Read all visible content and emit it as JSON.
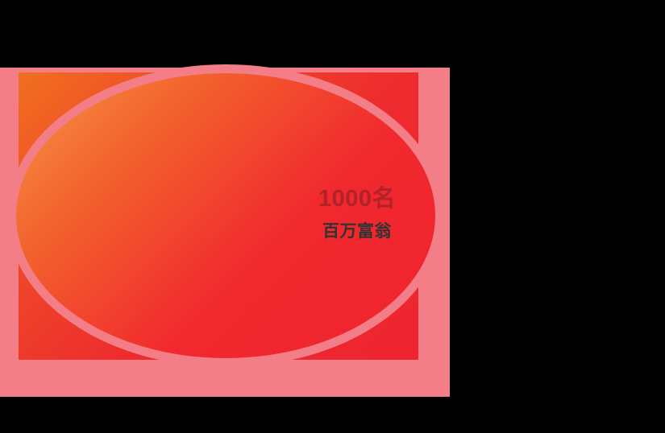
{
  "banner": {
    "headline": "1000名",
    "subline": "百万富翁",
    "colors": {
      "background": "#000000",
      "frame_pink": "#F47E88",
      "square_orange": "#F0701F",
      "square_red": "#EE2430",
      "ellipse_orange": "#F79645",
      "ellipse_red": "#F0232F",
      "headline_color": "#B2222A",
      "subline_color": "#333333"
    }
  }
}
